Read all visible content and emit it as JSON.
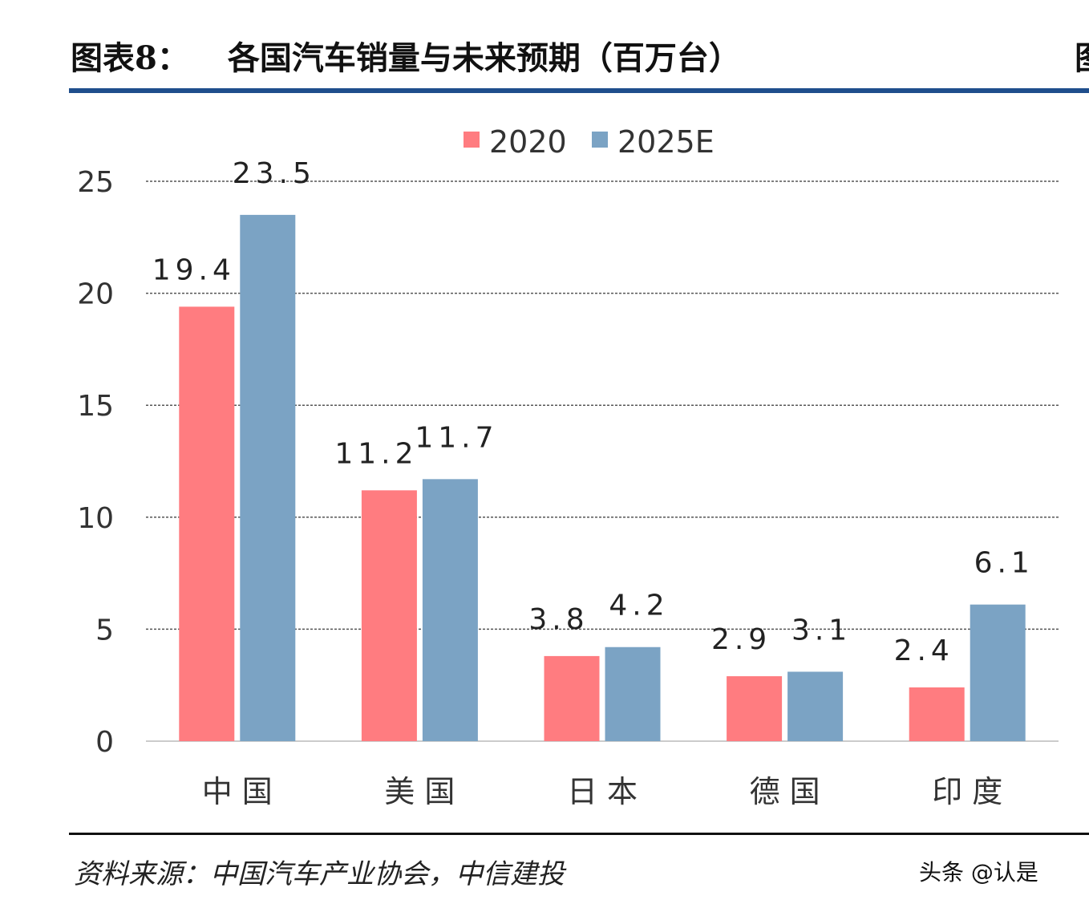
{
  "header": {
    "figure_label": "图表8：",
    "title": "各国汽车销量与未来预期（百万台）",
    "cut_text": "图"
  },
  "footer": {
    "source": "资料来源：中国汽车产业协会，中信建投",
    "watermark": "头条 @认是"
  },
  "chart_data": {
    "type": "bar",
    "title": "各国汽车销量与未来预期（百万台）",
    "categories": [
      "中国",
      "美国",
      "日本",
      "德国",
      "印度"
    ],
    "series": [
      {
        "name": "2020",
        "values": [
          19.4,
          11.2,
          3.8,
          2.9,
          2.4
        ],
        "labels": [
          "19.4",
          "11.2",
          "3.8",
          "2.9",
          "2.4"
        ],
        "color": "#FF7C80"
      },
      {
        "name": "2025E",
        "values": [
          23.5,
          11.7,
          4.2,
          3.1,
          6.1
        ],
        "labels": [
          "23.5",
          "11.7",
          "4.2",
          "3.1",
          "6.1"
        ],
        "color": "#7BA3C4"
      }
    ],
    "yticks": [
      "0",
      "5",
      "10",
      "15",
      "20",
      "25"
    ],
    "ylim": [
      0,
      25
    ],
    "grid": true,
    "legend": "top-center",
    "xlabel": "",
    "ylabel": ""
  }
}
